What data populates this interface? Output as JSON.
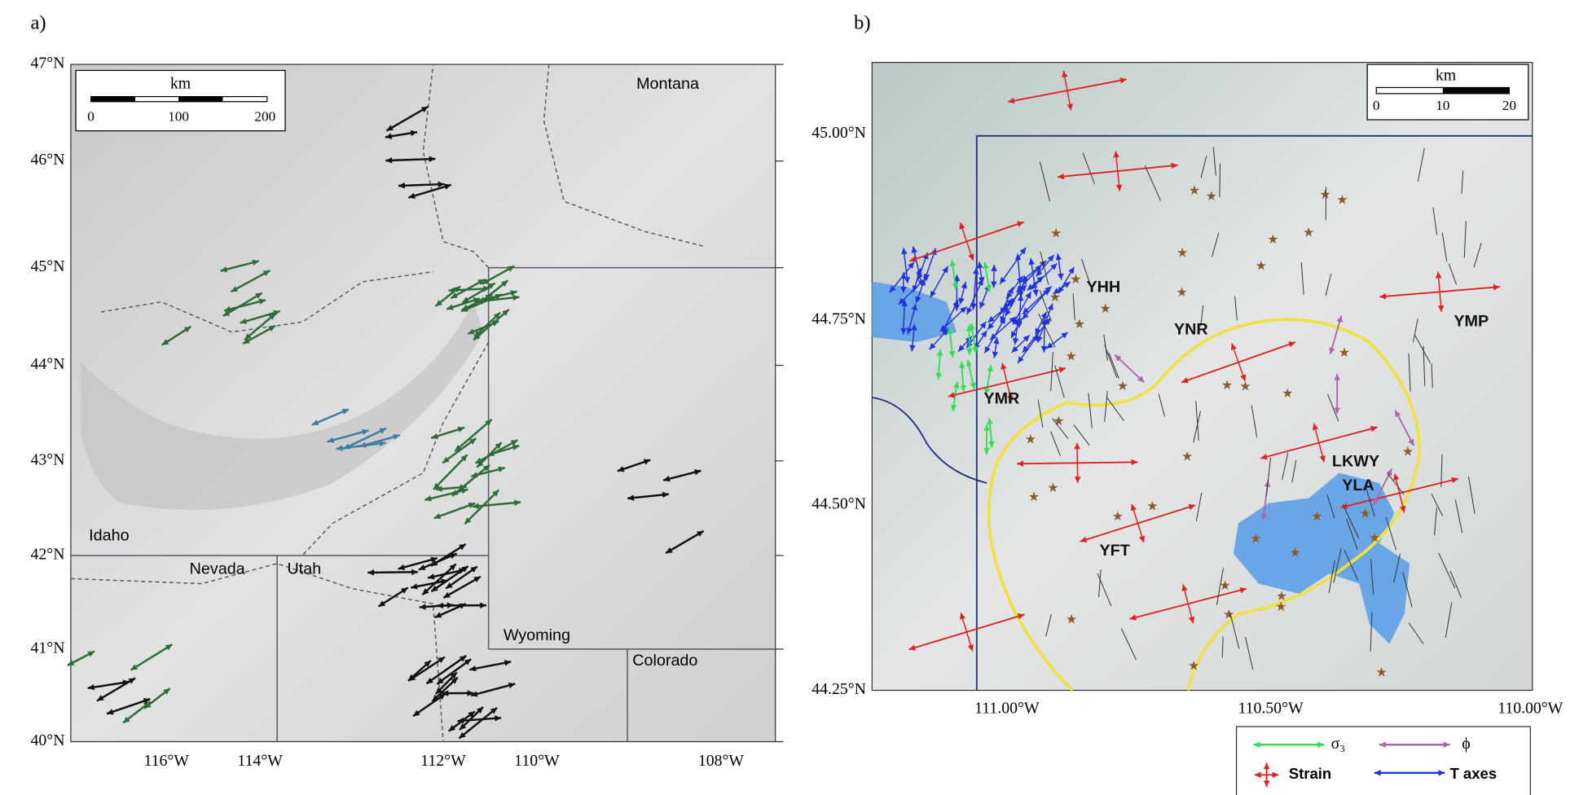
{
  "panel_a": {
    "label": "a)",
    "lat_labels": [
      "47°N",
      "46°N",
      "45°N",
      "44°N",
      "43°N",
      "42°N",
      "41°N",
      "40°N"
    ],
    "lon_labels": [
      "116°W",
      "114°W",
      "112°W",
      "110°W",
      "108°W"
    ],
    "places": [
      "Montana",
      "Idaho",
      "Nevada",
      "Utah",
      "Wyoming",
      "Colorado"
    ],
    "scale": {
      "title": "km",
      "ticks": [
        "0",
        "100",
        "200"
      ]
    }
  },
  "panel_b": {
    "label": "b)",
    "lat_labels": [
      "45.00°N",
      "44.75°N",
      "44.50°N",
      "44.25°N"
    ],
    "lon_labels": [
      "111.00°W",
      "110.50°W",
      "110.00°W"
    ],
    "stations": [
      "YHH",
      "YNR",
      "YMP",
      "YMR",
      "LKWY",
      "YLA",
      "YFT"
    ],
    "scale": {
      "title": "km",
      "ticks": [
        "0",
        "10",
        "20"
      ]
    }
  },
  "legend": {
    "items": [
      "σ₃",
      "ϕ",
      "Strain",
      "T axes"
    ]
  }
}
